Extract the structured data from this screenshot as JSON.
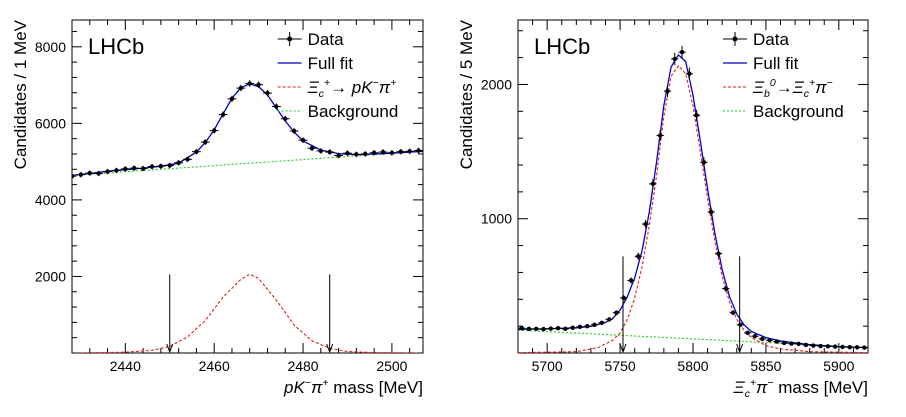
{
  "chart_data": [
    {
      "type": "line",
      "brand": "LHCb",
      "ylabel": "Candidates / 1 MeV",
      "xlabel": {
        "parts": [
          {
            "t": "pK",
            "style": "italic"
          },
          {
            "t": "−",
            "style": "sup"
          },
          {
            "t": "π",
            "style": "italic"
          },
          {
            "t": "+",
            "style": "sup"
          },
          {
            "t": " mass [MeV]",
            "style": "normal"
          }
        ]
      },
      "xlim": [
        2428,
        2507
      ],
      "ylim": [
        0,
        8700
      ],
      "xticks": [
        2440,
        2460,
        2480,
        2500
      ],
      "xtick_labels": [
        "2440",
        "2460",
        "2480",
        "2500"
      ],
      "yticks": [
        2000,
        4000,
        6000,
        8000
      ],
      "ytick_labels": [
        "2000",
        "4000",
        "6000",
        "8000"
      ],
      "legend": [
        {
          "key": "data",
          "label": [
            {
              "t": "Data",
              "style": "normal"
            }
          ]
        },
        {
          "key": "fit",
          "label": [
            {
              "t": "Full fit",
              "style": "normal"
            }
          ]
        },
        {
          "key": "signal",
          "label": [
            {
              "t": "Ξ",
              "style": "italic"
            },
            {
              "t": "c",
              "style": "sub"
            },
            {
              "t": "+",
              "style": "sup"
            },
            {
              "t": "→ ",
              "style": "normal"
            },
            {
              "t": "pK",
              "style": "italic"
            },
            {
              "t": "−",
              "style": "sup"
            },
            {
              "t": "π",
              "style": "italic"
            },
            {
              "t": "+",
              "style": "sup"
            }
          ]
        },
        {
          "key": "background",
          "label": [
            {
              "t": "Background",
              "style": "normal"
            }
          ]
        }
      ],
      "colors": {
        "data": "#000000",
        "fit": "#0000cc",
        "signal": "#e0201b",
        "background": "#22cc22"
      },
      "signal_window": [
        2450,
        2486
      ],
      "series": [
        {
          "key": "data",
          "x": [
            2428,
            2430,
            2432,
            2434,
            2436,
            2438,
            2440,
            2442,
            2444,
            2446,
            2448,
            2450,
            2452,
            2454,
            2456,
            2458,
            2460,
            2462,
            2464,
            2466,
            2468,
            2470,
            2472,
            2474,
            2476,
            2478,
            2480,
            2482,
            2484,
            2486,
            2488,
            2490,
            2492,
            2494,
            2496,
            2498,
            2500,
            2502,
            2504,
            2506
          ],
          "y": [
            4620,
            4660,
            4700,
            4690,
            4740,
            4770,
            4810,
            4830,
            4820,
            4870,
            4880,
            4900,
            4970,
            5060,
            5260,
            5510,
            5810,
            6230,
            6640,
            6920,
            7040,
            7010,
            6790,
            6440,
            6120,
            5800,
            5560,
            5350,
            5280,
            5250,
            5160,
            5220,
            5190,
            5200,
            5230,
            5250,
            5230,
            5260,
            5270,
            5290
          ]
        },
        {
          "key": "fit",
          "x": [
            2428,
            2432,
            2436,
            2440,
            2444,
            2448,
            2452,
            2456,
            2458,
            2460,
            2462,
            2464,
            2466,
            2468,
            2470,
            2472,
            2474,
            2476,
            2478,
            2480,
            2484,
            2488,
            2492,
            2496,
            2500,
            2504,
            2507
          ],
          "y": [
            4640,
            4690,
            4750,
            4790,
            4830,
            4880,
            4960,
            5250,
            5500,
            5830,
            6250,
            6650,
            6930,
            7030,
            6960,
            6740,
            6400,
            6060,
            5770,
            5540,
            5300,
            5210,
            5180,
            5200,
            5220,
            5250,
            5270
          ]
        },
        {
          "key": "signal",
          "x": [
            2430,
            2440,
            2446,
            2450,
            2454,
            2458,
            2462,
            2466,
            2468,
            2470,
            2474,
            2478,
            2482,
            2486,
            2490,
            2496,
            2506
          ],
          "y": [
            0,
            20,
            70,
            170,
            420,
            850,
            1460,
            1920,
            2060,
            1950,
            1380,
            730,
            320,
            120,
            40,
            10,
            0
          ]
        },
        {
          "key": "background",
          "x": [
            2428,
            2507
          ],
          "y": [
            4640,
            5270
          ]
        }
      ]
    },
    {
      "type": "line",
      "brand": "LHCb",
      "ylabel": "Candidates / 5 MeV",
      "xlabel": {
        "parts": [
          {
            "t": "Ξ",
            "style": "italic"
          },
          {
            "t": "c",
            "style": "sub"
          },
          {
            "t": "+",
            "style": "sup"
          },
          {
            "t": "π",
            "style": "italic"
          },
          {
            "t": "−",
            "style": "sup"
          },
          {
            "t": " mass [MeV]",
            "style": "normal"
          }
        ]
      },
      "xlim": [
        5680,
        5920
      ],
      "ylim": [
        0,
        2480
      ],
      "xticks": [
        5700,
        5750,
        5800,
        5850,
        5900
      ],
      "xtick_labels": [
        "5700",
        "5750",
        "5800",
        "5850",
        "5900"
      ],
      "yticks": [
        1000,
        2000
      ],
      "ytick_labels": [
        "1000",
        "2000"
      ],
      "legend": [
        {
          "key": "data",
          "label": [
            {
              "t": "Data",
              "style": "normal"
            }
          ]
        },
        {
          "key": "fit",
          "label": [
            {
              "t": "Full fit",
              "style": "normal"
            }
          ]
        },
        {
          "key": "signal",
          "label": [
            {
              "t": "Ξ",
              "style": "italic"
            },
            {
              "t": "b",
              "style": "sub"
            },
            {
              "t": "0",
              "style": "sup"
            },
            {
              "t": "→",
              "style": "normal"
            },
            {
              "t": "Ξ",
              "style": "italic"
            },
            {
              "t": "c",
              "style": "sub"
            },
            {
              "t": "+",
              "style": "sup"
            },
            {
              "t": "π",
              "style": "italic"
            },
            {
              "t": "−",
              "style": "sup"
            }
          ]
        },
        {
          "key": "background",
          "label": [
            {
              "t": "Background",
              "style": "normal"
            }
          ]
        }
      ],
      "colors": {
        "data": "#000000",
        "fit": "#0000cc",
        "signal": "#e0201b",
        "background": "#22cc22"
      },
      "signal_window": [
        5752,
        5832
      ],
      "series": [
        {
          "key": "data",
          "x": [
            5682.5,
            5687.5,
            5692.5,
            5697.5,
            5702.5,
            5707.5,
            5712.5,
            5717.5,
            5722.5,
            5727.5,
            5732.5,
            5737.5,
            5742.5,
            5747.5,
            5752.5,
            5757.5,
            5762.5,
            5767.5,
            5772.5,
            5777.5,
            5782.5,
            5787.5,
            5792.5,
            5797.5,
            5802.5,
            5807.5,
            5812.5,
            5817.5,
            5822.5,
            5827.5,
            5832.5,
            5837.5,
            5842.5,
            5847.5,
            5852.5,
            5857.5,
            5862.5,
            5867.5,
            5872.5,
            5877.5,
            5882.5,
            5887.5,
            5892.5,
            5897.5,
            5902.5,
            5907.5,
            5912.5,
            5917.5
          ],
          "y": [
            185,
            180,
            180,
            178,
            182,
            185,
            180,
            188,
            195,
            200,
            210,
            225,
            250,
            300,
            410,
            540,
            720,
            960,
            1260,
            1620,
            1950,
            2190,
            2240,
            2080,
            1770,
            1420,
            1050,
            740,
            480,
            300,
            210,
            150,
            125,
            105,
            95,
            85,
            75,
            70,
            68,
            60,
            55,
            52,
            50,
            48,
            45,
            43,
            42,
            40
          ]
        },
        {
          "key": "fit",
          "x": [
            5680,
            5690,
            5700,
            5710,
            5720,
            5730,
            5740,
            5745,
            5750,
            5755,
            5760,
            5765,
            5770,
            5775,
            5780,
            5785,
            5790,
            5795,
            5800,
            5805,
            5810,
            5815,
            5820,
            5825,
            5830,
            5835,
            5840,
            5850,
            5860,
            5870,
            5880,
            5890,
            5900,
            5910,
            5920
          ],
          "y": [
            175,
            178,
            180,
            183,
            188,
            198,
            228,
            258,
            320,
            420,
            560,
            760,
            1050,
            1420,
            1840,
            2130,
            2220,
            2170,
            1920,
            1580,
            1220,
            890,
            620,
            420,
            290,
            210,
            160,
            115,
            90,
            75,
            62,
            55,
            48,
            44,
            40
          ]
        },
        {
          "key": "signal",
          "x": [
            5680,
            5720,
            5735,
            5745,
            5750,
            5755,
            5760,
            5765,
            5770,
            5775,
            5780,
            5785,
            5790,
            5795,
            5800,
            5805,
            5810,
            5815,
            5820,
            5825,
            5830,
            5835,
            5840,
            5850,
            5860,
            5880,
            5920
          ],
          "y": [
            2,
            10,
            40,
            95,
            150,
            250,
            410,
            640,
            950,
            1320,
            1760,
            2060,
            2140,
            2080,
            1840,
            1500,
            1150,
            830,
            570,
            380,
            250,
            170,
            115,
            55,
            30,
            10,
            2
          ]
        },
        {
          "key": "background",
          "x": [
            5680,
            5920
          ],
          "y": [
            170,
            40
          ]
        }
      ]
    }
  ]
}
